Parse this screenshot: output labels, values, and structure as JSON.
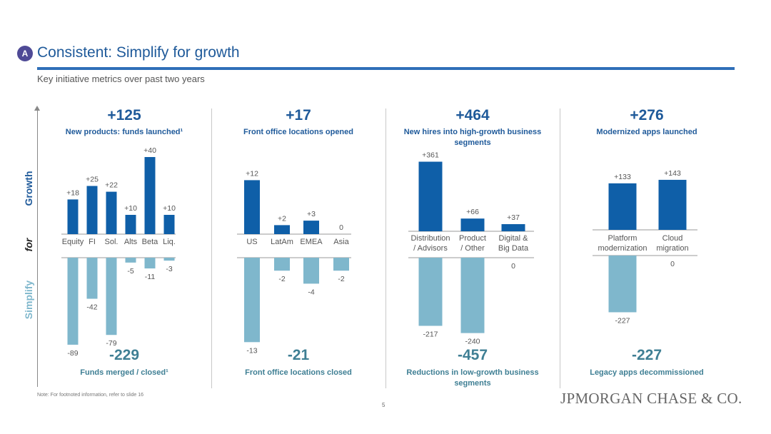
{
  "header": {
    "badge": "A",
    "title": "Consistent: Simplify for growth",
    "subtitle": "Key initiative metrics over past two years"
  },
  "axis_labels": {
    "growth": "Growth",
    "for": "for",
    "simplify": "Simplify"
  },
  "colors": {
    "growth_bar": "#0f5fa8",
    "simplify_bar": "#7fb7cc",
    "title": "#1f5a9a",
    "simplify_text": "#3f7f94"
  },
  "footer": {
    "note": "Note: For footnoted information, refer to slide 16",
    "page": "5",
    "logo": "JPMORGAN CHASE & CO."
  },
  "panels": [
    {
      "top_total": "+125",
      "top_caption": "New products: funds launched¹",
      "bottom_total": "-229",
      "bottom_caption": "Funds merged / closed¹"
    },
    {
      "top_total": "+17",
      "top_caption": "Front office locations opened",
      "bottom_total": "-21",
      "bottom_caption": "Front office locations closed"
    },
    {
      "top_total": "+464",
      "top_caption": "New hires into high-growth business segments",
      "bottom_total": "-457",
      "bottom_caption": "Reductions in low-growth business segments"
    },
    {
      "top_total": "+276",
      "top_caption": "Modernized apps launched",
      "bottom_total": "-227",
      "bottom_caption": "Legacy apps decommissioned"
    }
  ],
  "chart_data": [
    {
      "type": "bar",
      "categories": [
        "Equity",
        "FI",
        "Sol.",
        "Alts",
        "Beta",
        "Liq."
      ],
      "series": [
        {
          "name": "New products: funds launched",
          "values": [
            18,
            25,
            22,
            10,
            40,
            10
          ],
          "labels": [
            "+18",
            "+25",
            "+22",
            "+10",
            "+40",
            "+10"
          ]
        },
        {
          "name": "Funds merged / closed",
          "values": [
            -89,
            -42,
            -79,
            -5,
            -11,
            -3
          ],
          "labels": [
            "-89",
            "-42",
            "-79",
            "-5",
            "-11",
            "-3"
          ]
        }
      ]
    },
    {
      "type": "bar",
      "categories": [
        "US",
        "LatAm",
        "EMEA",
        "Asia"
      ],
      "series": [
        {
          "name": "Front office locations opened",
          "values": [
            12,
            2,
            3,
            0
          ],
          "labels": [
            "+12",
            "+2",
            "+3",
            "0"
          ]
        },
        {
          "name": "Front office locations closed",
          "values": [
            -13,
            -2,
            -4,
            -2
          ],
          "labels": [
            "-13",
            "-2",
            "-4",
            "-2"
          ]
        }
      ]
    },
    {
      "type": "bar",
      "categories": [
        "Distribution / Advisors",
        "Product / Other",
        "Digital & Big Data"
      ],
      "series": [
        {
          "name": "New hires into high-growth business segments",
          "values": [
            361,
            66,
            37
          ],
          "labels": [
            "+361",
            "+66",
            "+37"
          ]
        },
        {
          "name": "Reductions in low-growth business segments",
          "values": [
            -217,
            -240,
            0
          ],
          "labels": [
            "-217",
            "-240",
            "0"
          ]
        }
      ]
    },
    {
      "type": "bar",
      "categories": [
        "Platform modernization",
        "Cloud migration"
      ],
      "series": [
        {
          "name": "Modernized apps launched",
          "values": [
            133,
            143
          ],
          "labels": [
            "+133",
            "+143"
          ]
        },
        {
          "name": "Legacy apps decommissioned",
          "values": [
            -227,
            0
          ],
          "labels": [
            "-227",
            "0"
          ]
        }
      ]
    }
  ]
}
